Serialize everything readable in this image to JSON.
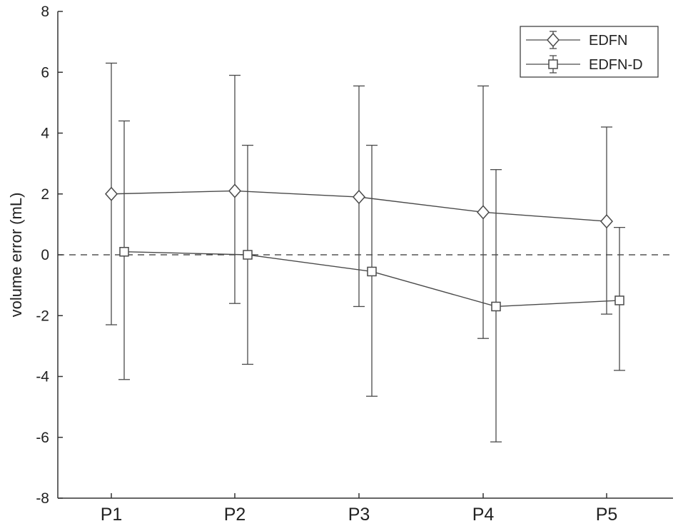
{
  "chart_data": {
    "type": "line",
    "title": "",
    "xlabel": "",
    "ylabel": "volume error (mL)",
    "categories": [
      "P1",
      "P2",
      "P3",
      "P4",
      "P5"
    ],
    "ylim": [
      -8,
      8
    ],
    "yticks": [
      -8,
      -6,
      -4,
      -2,
      0,
      2,
      4,
      6,
      8
    ],
    "yticklabels": [
      "-8",
      "-6",
      "-4",
      "-2",
      "0",
      "2",
      "4",
      "6",
      "8"
    ],
    "grid": false,
    "reference_line": {
      "y": 0,
      "style": "dashed"
    },
    "legend_position": "top-right",
    "series": [
      {
        "name": "EDFN",
        "marker": "diamond",
        "values": [
          2.0,
          2.1,
          1.9,
          1.4,
          1.1
        ],
        "error_low": [
          -2.3,
          -1.6,
          -1.7,
          -2.75,
          -1.95
        ],
        "error_high": [
          6.3,
          5.9,
          5.55,
          5.55,
          4.2
        ]
      },
      {
        "name": "EDFN-D",
        "marker": "square",
        "values": [
          0.1,
          0.0,
          -0.55,
          -1.7,
          -1.5
        ],
        "error_low": [
          -4.1,
          -3.6,
          -4.65,
          -6.15,
          -3.8
        ],
        "error_high": [
          4.4,
          3.6,
          3.6,
          2.8,
          0.9
        ]
      }
    ],
    "colors": {
      "line": "#4a4a4a",
      "axis": "#333333",
      "text": "#222222"
    }
  }
}
